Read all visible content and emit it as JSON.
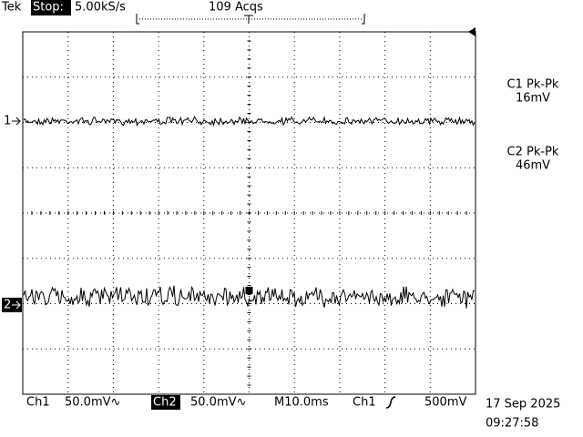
{
  "header": {
    "brand": "Tek",
    "status": "Stop:",
    "sample_rate": "5.00kS/s",
    "acquisitions": "109 Acqs"
  },
  "measurements": [
    {
      "label": "C1 Pk-Pk",
      "value": "16mV"
    },
    {
      "label": "C2 Pk-Pk",
      "value": "46mV"
    }
  ],
  "channel_markers": [
    "1",
    "2"
  ],
  "footer": {
    "ch1": {
      "name": "Ch1",
      "scale": "50.0mV∿"
    },
    "ch2": {
      "name": "Ch2",
      "scale": "50.0mV∿"
    },
    "timebase": "M10.0ms",
    "trigger": {
      "source": "Ch1",
      "level": "500mV"
    },
    "date": "17 Sep 2025",
    "time": "09:27:58"
  }
}
